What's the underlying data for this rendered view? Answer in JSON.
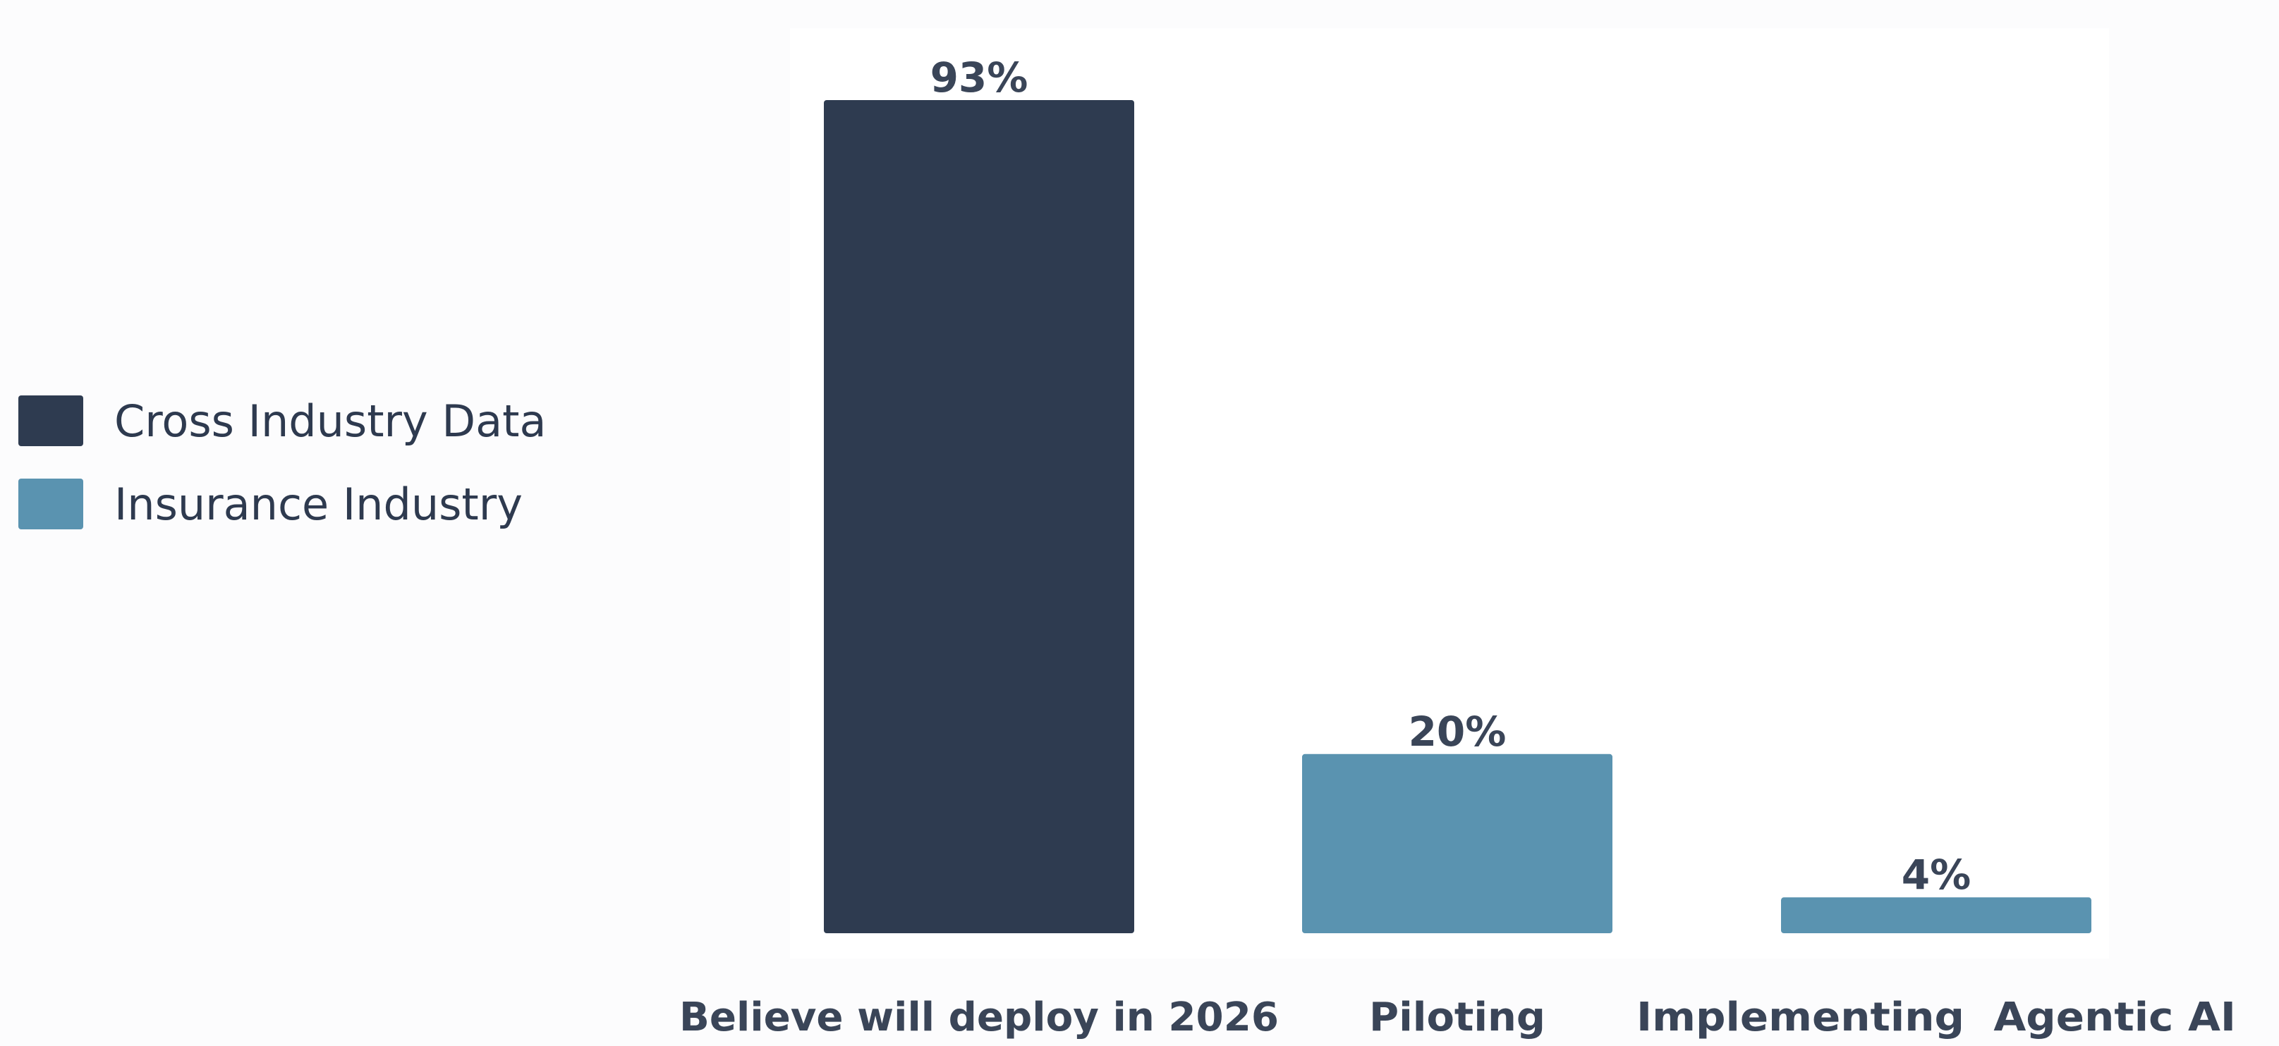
{
  "chart_data": {
    "type": "bar",
    "categories": [
      "Believe will deploy in 2026",
      "Piloting",
      "Implementing  Agentic AI"
    ],
    "values": [
      93,
      20,
      4
    ],
    "data_labels": [
      "93%",
      "20%",
      "4%"
    ],
    "series_of_bar": [
      "Cross Industry Data",
      "Insurance Industry",
      "Insurance Industry"
    ],
    "legend": [
      {
        "label": "Cross Industry Data",
        "color": "#2e3b50"
      },
      {
        "label": "Insurance Industry",
        "color": "#5a93b0"
      }
    ],
    "legend_position": "left",
    "grid": false,
    "ylim": [
      0,
      100
    ],
    "title": "",
    "xlabel": "",
    "ylabel": ""
  }
}
